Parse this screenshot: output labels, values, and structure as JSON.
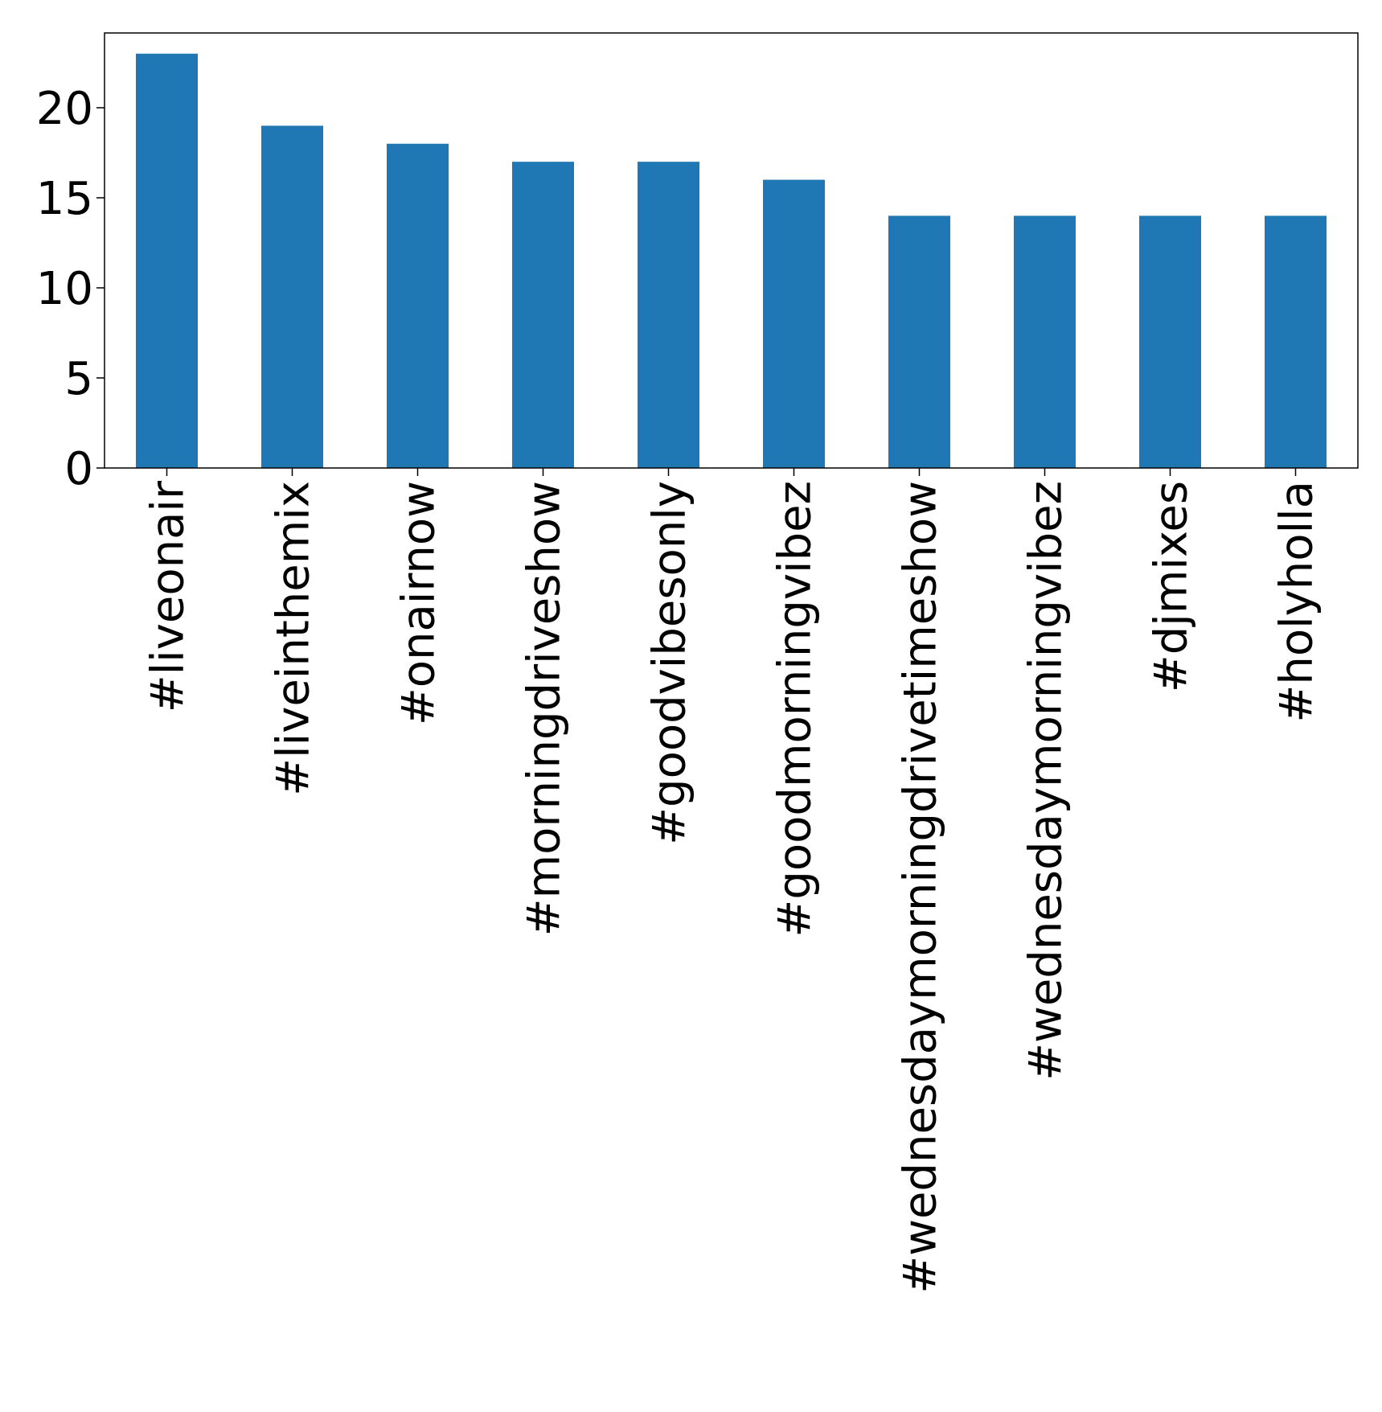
{
  "chart_data": {
    "type": "bar",
    "title": "",
    "xlabel": "",
    "ylabel": "",
    "categories": [
      "#liveonair",
      "#liveinthemix",
      "#onairnow",
      "#morningdriveshow",
      "#goodvibesonly",
      "#goodmorningvibez",
      "#wednesdaymorningdrivetimeshow",
      "#wednesdaymorningvibez",
      "#djmixes",
      "#holyholla"
    ],
    "values": [
      23,
      19,
      18,
      17,
      17,
      16,
      14,
      14,
      14,
      14
    ],
    "ylim": [
      0,
      24.15
    ],
    "yticks": [
      0,
      5,
      10,
      15,
      20
    ],
    "grid": false,
    "legend": "none",
    "colors": {
      "bar": "#1f77b4",
      "axis": "#000000",
      "background": "#ffffff"
    }
  }
}
